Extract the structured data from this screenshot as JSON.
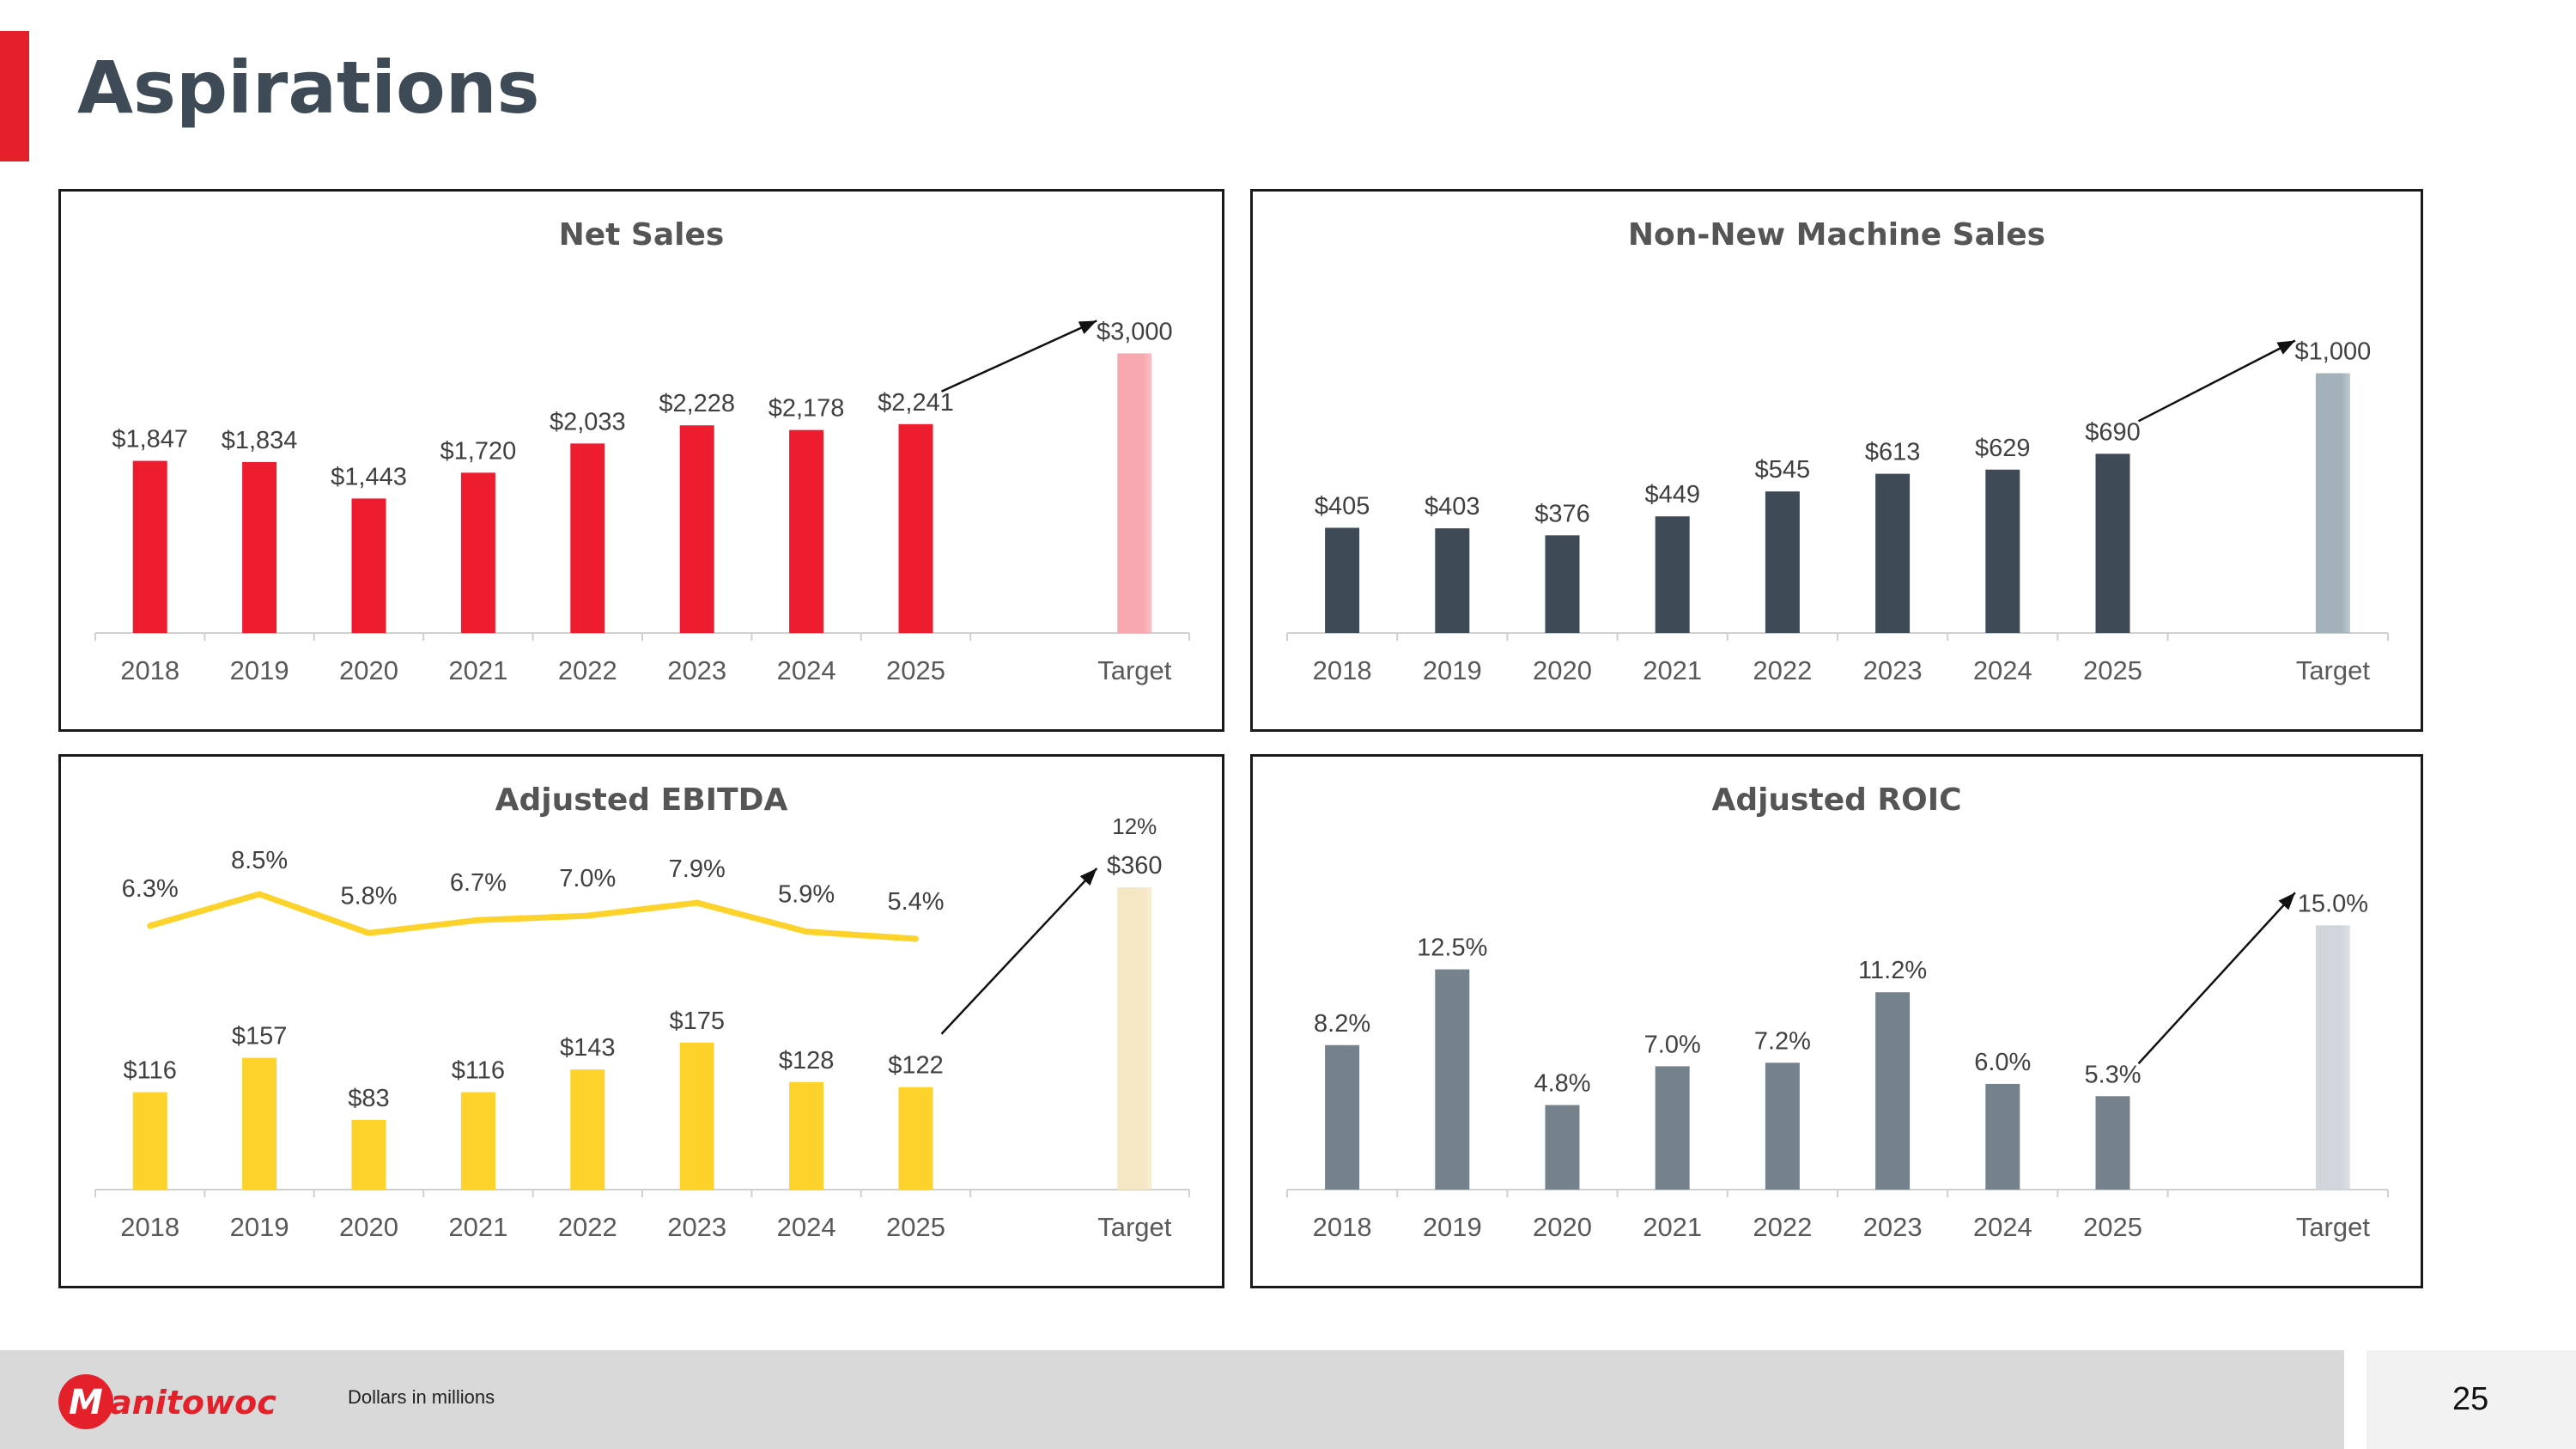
{
  "page": {
    "title": "Aspirations",
    "footnote": "Dollars in millions",
    "page_number": "25",
    "brand": "Manitowoc",
    "colors": {
      "accent": "#E4202B",
      "title": "#3E4A55"
    }
  },
  "chart_data": [
    {
      "id": "net-sales",
      "type": "bar",
      "title": "Net Sales",
      "categories": [
        "2018",
        "2019",
        "2020",
        "2021",
        "2022",
        "2023",
        "2024",
        "2025",
        "Target"
      ],
      "values": [
        1847,
        1834,
        1443,
        1720,
        2033,
        2228,
        2178,
        2241,
        3000
      ],
      "labels": [
        "$1,847",
        "$1,834",
        "$1,443",
        "$1,720",
        "$2,033",
        "$2,228",
        "$2,178",
        "$2,241",
        "$3,000"
      ],
      "ylim": [
        0,
        3400
      ],
      "color": "#ED1C2E",
      "target_color": "#F7A8B0",
      "grid": false,
      "xlabel": "",
      "ylabel": ""
    },
    {
      "id": "non-new-machine-sales",
      "type": "bar",
      "title": "Non-New Machine Sales",
      "categories": [
        "2018",
        "2019",
        "2020",
        "2021",
        "2022",
        "2023",
        "2024",
        "2025",
        "Target"
      ],
      "values": [
        405,
        403,
        376,
        449,
        545,
        613,
        629,
        690,
        1000
      ],
      "labels": [
        "$405",
        "$403",
        "$376",
        "$449",
        "$545",
        "$613",
        "$629",
        "$690",
        "$1,000"
      ],
      "ylim": [
        0,
        1220
      ],
      "color": "#3E4A55",
      "target_color": "#A3B1BA",
      "grid": false,
      "xlabel": "",
      "ylabel": ""
    },
    {
      "id": "adjusted-ebitda",
      "type": "bar",
      "title": "Adjusted EBITDA",
      "categories": [
        "2018",
        "2019",
        "2020",
        "2021",
        "2022",
        "2023",
        "2024",
        "2025",
        "Target"
      ],
      "values": [
        116,
        157,
        83,
        116,
        143,
        175,
        128,
        122,
        360
      ],
      "labels": [
        "$116",
        "$157",
        "$83",
        "$116",
        "$143",
        "$175",
        "$128",
        "$122",
        "$360"
      ],
      "ylim": [
        0,
        360
      ],
      "color": "#FDD22B",
      "target_color": "#F6E7C4",
      "grid": false,
      "line_series": {
        "type": "line",
        "values": [
          6.3,
          8.5,
          5.8,
          6.7,
          7.0,
          7.9,
          5.9,
          5.4
        ],
        "labels": [
          "6.3%",
          "8.5%",
          "5.8%",
          "6.7%",
          "7.0%",
          "7.9%",
          "5.9%",
          "5.4%"
        ],
        "target_label": "12%",
        "ylim": [
          5.4,
          8.5
        ],
        "color": "#FDD22B"
      },
      "xlabel": "",
      "ylabel": ""
    },
    {
      "id": "adjusted-roic",
      "type": "bar",
      "title": "Adjusted ROIC",
      "categories": [
        "2018",
        "2019",
        "2020",
        "2021",
        "2022",
        "2023",
        "2024",
        "2025",
        "Target"
      ],
      "values": [
        8.2,
        12.5,
        4.8,
        7.0,
        7.2,
        11.2,
        6.0,
        5.3,
        15.0
      ],
      "labels": [
        "8.2%",
        "12.5%",
        "4.8%",
        "7.0%",
        "7.2%",
        "11.2%",
        "6.0%",
        "5.3%",
        "15.0%"
      ],
      "ylim": [
        0,
        17.5
      ],
      "color": "#76828B",
      "target_color": "#D0D6DB",
      "grid": false,
      "xlabel": "",
      "ylabel": ""
    }
  ]
}
